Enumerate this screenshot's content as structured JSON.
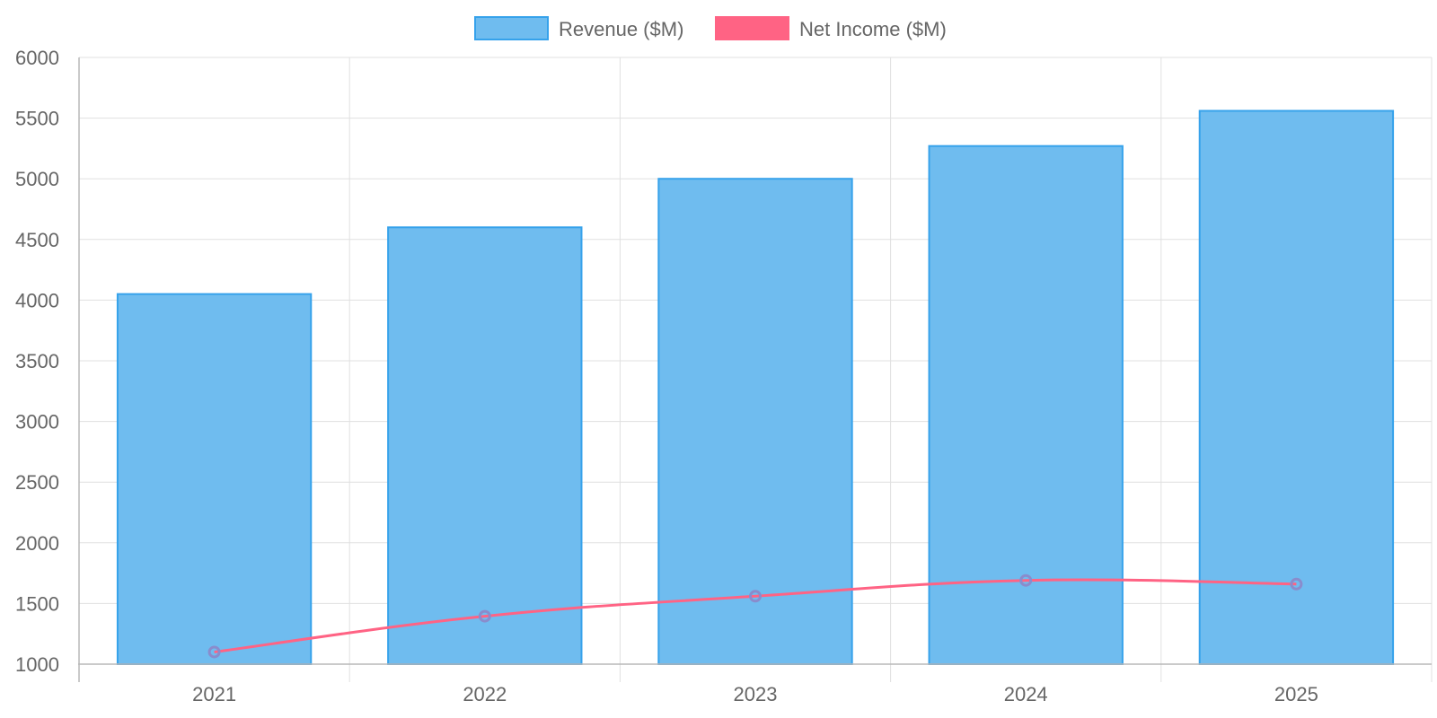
{
  "chart_data": {
    "type": "bar",
    "categories": [
      "2021",
      "2022",
      "2023",
      "2024",
      "2025"
    ],
    "series": [
      {
        "name": "Revenue ($M)",
        "kind": "bar",
        "values": [
          4050,
          4600,
          5000,
          5270,
          5560
        ],
        "color": "#36a2eb",
        "fill": "#6fbcef"
      },
      {
        "name": "Net Income ($M)",
        "kind": "line",
        "values": [
          1100,
          1395,
          1560,
          1690,
          1660
        ],
        "color": "#ff6384",
        "point_color": "#8a8ccc"
      }
    ],
    "ylim": [
      1000,
      6000
    ],
    "yticks": [
      "1000",
      "1500",
      "2000",
      "2500",
      "3000",
      "3500",
      "4000",
      "4500",
      "5000",
      "5500",
      "6000"
    ],
    "grid": true,
    "legend_position": "top"
  }
}
